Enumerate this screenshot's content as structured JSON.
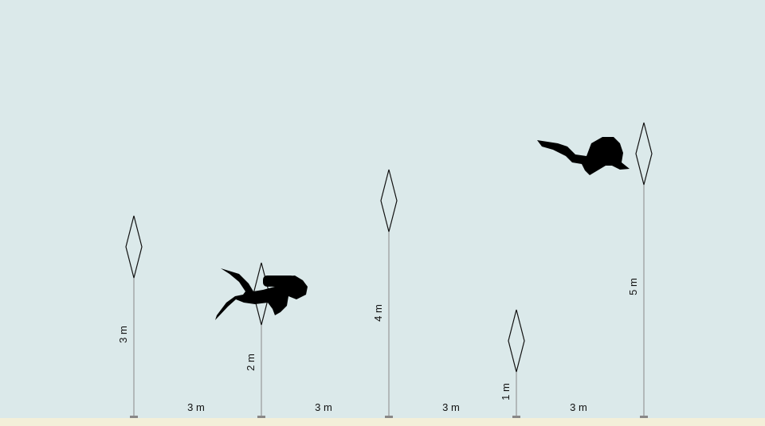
{
  "colors": {
    "water": "#dbe9ea",
    "seabed": "#f3efd9",
    "line": "#888888",
    "marker": "#111111",
    "diver": "#000000"
  },
  "markers": [
    {
      "height_label": "3 m",
      "height_m": 3
    },
    {
      "height_label": "2 m",
      "height_m": 2
    },
    {
      "height_label": "4 m",
      "height_m": 4
    },
    {
      "height_label": "1 m",
      "height_m": 1
    },
    {
      "height_label": "5 m",
      "height_m": 5
    }
  ],
  "spacings": [
    "3 m",
    "3 m",
    "3 m",
    "3 m"
  ],
  "icons": [
    "scuba-diver-icon",
    "scuba-diver-icon"
  ]
}
